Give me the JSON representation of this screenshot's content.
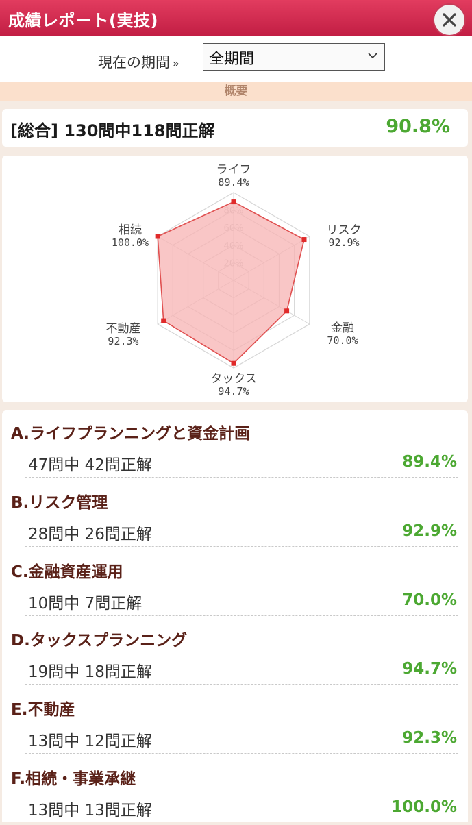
{
  "header": {
    "title": "成績レポート(実技)"
  },
  "period": {
    "label": "現在の期間",
    "marker": "»",
    "selected": "全期間"
  },
  "section": {
    "title": "概要"
  },
  "summary": {
    "text": "[総合] 130問中118問正解",
    "percent": "90.8%"
  },
  "radar": {
    "scale_labels": [
      "20%",
      "40%",
      "60%",
      "80%"
    ],
    "axes": [
      {
        "label": "ライフ",
        "percent": "89.4%",
        "value": 89.4
      },
      {
        "label": "リスク",
        "percent": "92.9%",
        "value": 92.9
      },
      {
        "label": "金融",
        "percent": "70.0%",
        "value": 70.0
      },
      {
        "label": "タックス",
        "percent": "94.7%",
        "value": 94.7
      },
      {
        "label": "不動産",
        "percent": "92.3%",
        "value": 92.3
      },
      {
        "label": "相続",
        "percent": "100.0%",
        "value": 100.0
      }
    ],
    "colors": {
      "fill": "#f7b3b3",
      "stroke": "#e05050",
      "point": "#e02a2a",
      "grid": "#d6d6d6"
    }
  },
  "categories": [
    {
      "title": "A.ライフプランニングと資金計画",
      "count": "47問中 42問正解",
      "percent": "89.4%"
    },
    {
      "title": "B.リスク管理",
      "count": "28問中 26問正解",
      "percent": "92.9%"
    },
    {
      "title": "C.金融資産運用",
      "count": "10問中 7問正解",
      "percent": "70.0%"
    },
    {
      "title": "D.タックスプランニング",
      "count": "19問中 18問正解",
      "percent": "94.7%"
    },
    {
      "title": "E.不動産",
      "count": "13問中 12問正解",
      "percent": "92.3%"
    },
    {
      "title": "F.相続・事業承継",
      "count": "13問中 13問正解",
      "percent": "100.0%"
    }
  ],
  "icons": {
    "close": "close-icon",
    "dropdown": "chevron-down-icon"
  }
}
